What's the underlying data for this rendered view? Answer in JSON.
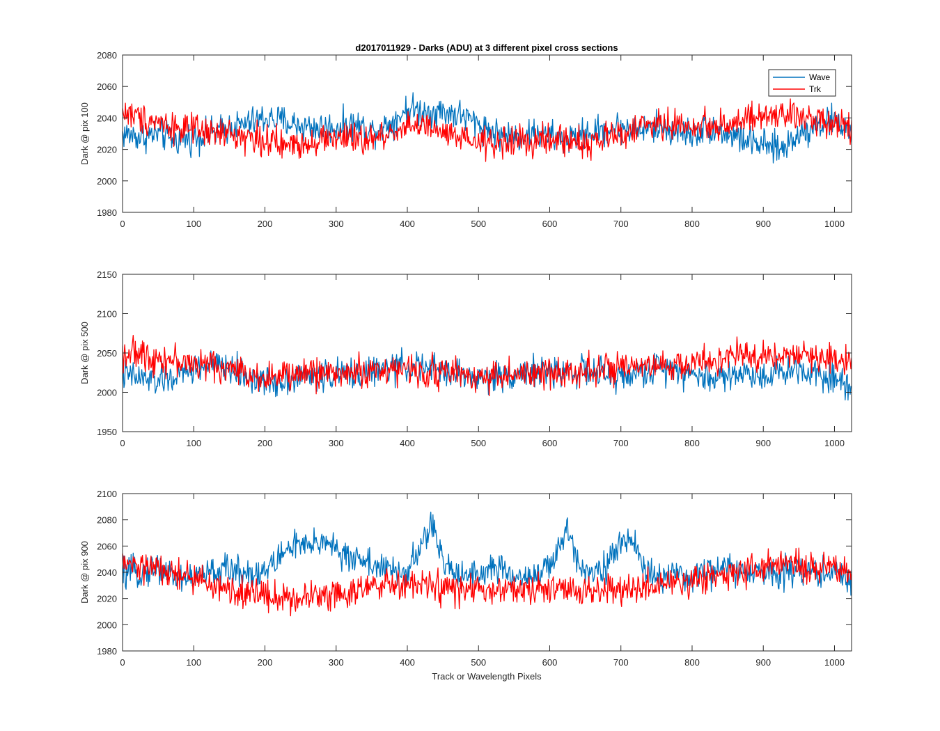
{
  "figure_title": "d2017011929 - Darks (ADU) at 3 different pixel cross sections",
  "xlabel": "Track or Wavelength Pixels",
  "legend": [
    "Wave",
    "Trk"
  ],
  "colors": {
    "Wave": "#0072bd",
    "Trk": "#ff0000",
    "axis": "#262626"
  },
  "chart_data": [
    {
      "type": "line",
      "title": "d2017011929 - Darks (ADU) at 3 different pixel cross sections",
      "ylabel": "Dark @ pix 100",
      "xlim": [
        0,
        1024
      ],
      "ylim": [
        1980,
        2080
      ],
      "xticks": [
        0,
        100,
        200,
        300,
        400,
        500,
        600,
        700,
        800,
        900,
        1000
      ],
      "yticks": [
        1980,
        2000,
        2020,
        2040,
        2060,
        2080
      ],
      "legend_location": "top-right",
      "series": [
        {
          "name": "Wave",
          "color": "#0072bd",
          "x": [
            0,
            25,
            50,
            75,
            100,
            125,
            150,
            175,
            200,
            225,
            250,
            275,
            300,
            325,
            350,
            375,
            400,
            425,
            450,
            475,
            500,
            525,
            550,
            575,
            600,
            625,
            650,
            675,
            700,
            725,
            750,
            775,
            800,
            825,
            850,
            875,
            900,
            925,
            950,
            975,
            1000,
            1024
          ],
          "y": [
            2030,
            2028,
            2030,
            2026,
            2028,
            2030,
            2034,
            2036,
            2040,
            2038,
            2035,
            2034,
            2034,
            2036,
            2032,
            2036,
            2046,
            2044,
            2044,
            2042,
            2036,
            2030,
            2028,
            2030,
            2028,
            2026,
            2030,
            2032,
            2034,
            2032,
            2034,
            2032,
            2030,
            2034,
            2030,
            2026,
            2022,
            2020,
            2030,
            2036,
            2038,
            2032
          ]
        },
        {
          "name": "Trk",
          "color": "#ff0000",
          "x": [
            0,
            25,
            50,
            75,
            100,
            125,
            150,
            175,
            200,
            225,
            250,
            275,
            300,
            325,
            350,
            375,
            400,
            425,
            450,
            475,
            500,
            525,
            550,
            575,
            600,
            625,
            650,
            675,
            700,
            725,
            750,
            775,
            800,
            825,
            850,
            875,
            900,
            925,
            950,
            975,
            1000,
            1024
          ],
          "y": [
            2044,
            2040,
            2038,
            2034,
            2032,
            2030,
            2030,
            2028,
            2026,
            2022,
            2024,
            2026,
            2028,
            2026,
            2026,
            2030,
            2036,
            2034,
            2030,
            2026,
            2024,
            2024,
            2026,
            2024,
            2026,
            2026,
            2024,
            2026,
            2030,
            2034,
            2036,
            2036,
            2034,
            2036,
            2036,
            2038,
            2040,
            2042,
            2040,
            2040,
            2038,
            2034
          ]
        }
      ]
    },
    {
      "type": "line",
      "title": "",
      "ylabel": "Dark @ pix 500",
      "xlim": [
        0,
        1024
      ],
      "ylim": [
        1950,
        2150
      ],
      "xticks": [
        0,
        100,
        200,
        300,
        400,
        500,
        600,
        700,
        800,
        900,
        1000
      ],
      "yticks": [
        1950,
        2000,
        2050,
        2100,
        2150
      ],
      "series": [
        {
          "name": "Wave",
          "color": "#0072bd",
          "x": [
            0,
            25,
            50,
            75,
            100,
            125,
            150,
            175,
            200,
            225,
            250,
            275,
            300,
            325,
            350,
            375,
            400,
            425,
            450,
            475,
            500,
            525,
            550,
            575,
            600,
            625,
            650,
            675,
            700,
            725,
            750,
            775,
            800,
            825,
            850,
            875,
            900,
            925,
            950,
            975,
            1000,
            1024
          ],
          "y": [
            2022,
            2018,
            2014,
            2020,
            2030,
            2034,
            2030,
            2020,
            2012,
            2015,
            2020,
            2022,
            2022,
            2024,
            2026,
            2030,
            2034,
            2030,
            2028,
            2022,
            2018,
            2020,
            2024,
            2026,
            2024,
            2028,
            2026,
            2022,
            2020,
            2024,
            2030,
            2034,
            2022,
            2018,
            2022,
            2024,
            2022,
            2026,
            2030,
            2026,
            2018,
            2008
          ]
        },
        {
          "name": "Trk",
          "color": "#ff0000",
          "x": [
            0,
            25,
            50,
            75,
            100,
            125,
            150,
            175,
            200,
            225,
            250,
            275,
            300,
            325,
            350,
            375,
            400,
            425,
            450,
            475,
            500,
            525,
            550,
            575,
            600,
            625,
            650,
            675,
            700,
            725,
            750,
            775,
            800,
            825,
            850,
            875,
            900,
            925,
            950,
            975,
            1000,
            1024
          ],
          "y": [
            2050,
            2048,
            2044,
            2040,
            2036,
            2034,
            2030,
            2024,
            2020,
            2020,
            2024,
            2026,
            2024,
            2026,
            2026,
            2030,
            2028,
            2026,
            2026,
            2024,
            2020,
            2022,
            2022,
            2022,
            2024,
            2026,
            2030,
            2030,
            2028,
            2030,
            2032,
            2034,
            2036,
            2040,
            2044,
            2046,
            2046,
            2048,
            2046,
            2044,
            2044,
            2040
          ]
        }
      ]
    },
    {
      "type": "line",
      "title": "",
      "ylabel": "Dark @ pix 900",
      "xlim": [
        0,
        1024
      ],
      "ylim": [
        1980,
        2100
      ],
      "xticks": [
        0,
        100,
        200,
        300,
        400,
        500,
        600,
        700,
        800,
        900,
        1000
      ],
      "yticks": [
        1980,
        2000,
        2020,
        2040,
        2060,
        2080,
        2100
      ],
      "series": [
        {
          "name": "Wave",
          "color": "#0072bd",
          "x": [
            0,
            25,
            50,
            75,
            100,
            125,
            150,
            175,
            200,
            210,
            240,
            260,
            290,
            310,
            330,
            360,
            380,
            400,
            420,
            435,
            450,
            470,
            500,
            520,
            550,
            580,
            600,
            610,
            625,
            640,
            660,
            680,
            700,
            715,
            735,
            760,
            790,
            820,
            850,
            880,
            910,
            940,
            970,
            1000,
            1024
          ],
          "y": [
            2038,
            2040,
            2044,
            2036,
            2036,
            2040,
            2042,
            2040,
            2040,
            2046,
            2062,
            2058,
            2066,
            2050,
            2052,
            2044,
            2040,
            2040,
            2060,
            2078,
            2046,
            2040,
            2038,
            2044,
            2036,
            2038,
            2044,
            2052,
            2074,
            2048,
            2040,
            2046,
            2060,
            2068,
            2040,
            2036,
            2036,
            2040,
            2044,
            2038,
            2040,
            2042,
            2040,
            2040,
            2034
          ]
        },
        {
          "name": "Trk",
          "color": "#ff0000",
          "x": [
            0,
            25,
            50,
            75,
            100,
            125,
            150,
            175,
            200,
            225,
            250,
            275,
            300,
            325,
            350,
            375,
            400,
            425,
            450,
            475,
            500,
            525,
            550,
            575,
            600,
            625,
            650,
            675,
            700,
            725,
            750,
            775,
            800,
            825,
            850,
            875,
            900,
            925,
            950,
            975,
            1000,
            1024
          ],
          "y": [
            2046,
            2044,
            2042,
            2038,
            2036,
            2030,
            2026,
            2024,
            2024,
            2020,
            2020,
            2024,
            2024,
            2026,
            2028,
            2030,
            2030,
            2030,
            2028,
            2026,
            2026,
            2026,
            2026,
            2026,
            2026,
            2028,
            2026,
            2026,
            2026,
            2028,
            2030,
            2030,
            2034,
            2036,
            2040,
            2042,
            2044,
            2046,
            2044,
            2044,
            2042,
            2040
          ]
        }
      ]
    }
  ]
}
